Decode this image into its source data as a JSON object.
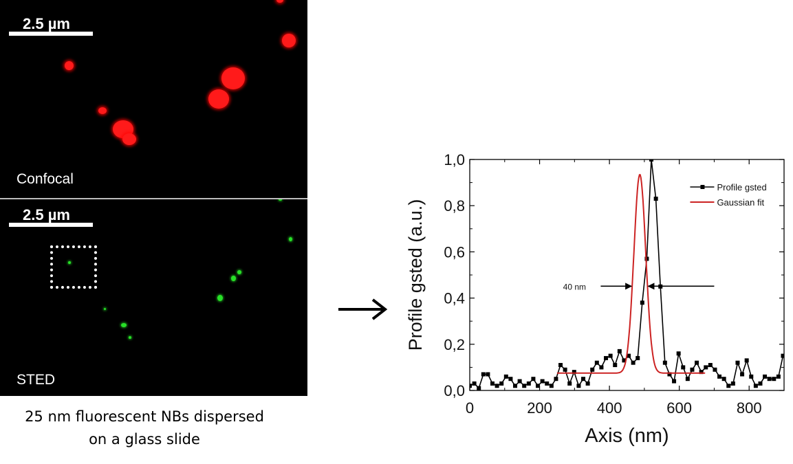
{
  "left_panel": {
    "confocal": {
      "scale_label": "2.5 µm",
      "label": "Confocal",
      "spot_color": "#ff1a1a"
    },
    "sted": {
      "scale_label": "2.5 µm",
      "label": "STED",
      "spot_color": "#27e027"
    },
    "caption_line1": "25 nm fluorescent NBs dispersed",
    "caption_line2": "on a glass slide"
  },
  "chart_data": {
    "type": "line",
    "ylabel": "Profile gsted (a.u.)",
    "xlabel": "Axis (nm)",
    "xlim": [
      0,
      900
    ],
    "ylim": [
      0,
      1.0
    ],
    "xticks": [
      "0",
      "200",
      "400",
      "600",
      "800"
    ],
    "yticks": [
      "0,0",
      "0,2",
      "0,4",
      "0,6",
      "0,8",
      "1,0"
    ],
    "grid": false,
    "legend_position": "top-right",
    "annotation": "40 nm",
    "series": [
      {
        "name": "Profile gsted",
        "color": "#000000",
        "x": [
          0,
          13,
          26,
          39,
          52,
          65,
          78,
          91,
          104,
          117,
          130,
          143,
          156,
          169,
          182,
          195,
          208,
          221,
          234,
          247,
          260,
          273,
          286,
          299,
          312,
          325,
          338,
          351,
          364,
          377,
          390,
          403,
          416,
          429,
          442,
          455,
          468,
          481,
          494,
          507,
          520,
          533,
          546,
          559,
          572,
          585,
          598,
          611,
          624,
          637,
          650,
          663,
          676,
          689,
          702,
          715,
          728,
          741,
          754,
          767,
          780,
          793,
          806,
          819,
          832,
          845,
          858,
          871,
          884,
          897
        ],
        "y": [
          0.02,
          0.03,
          0.01,
          0.07,
          0.07,
          0.03,
          0.02,
          0.03,
          0.06,
          0.05,
          0.02,
          0.04,
          0.02,
          0.03,
          0.05,
          0.02,
          0.04,
          0.03,
          0.02,
          0.05,
          0.11,
          0.09,
          0.03,
          0.08,
          0.02,
          0.05,
          0.03,
          0.09,
          0.12,
          0.1,
          0.14,
          0.15,
          0.11,
          0.17,
          0.13,
          0.15,
          0.12,
          0.14,
          0.38,
          0.57,
          1.0,
          0.83,
          0.45,
          0.12,
          0.07,
          0.04,
          0.16,
          0.1,
          0.05,
          0.09,
          0.12,
          0.08,
          0.1,
          0.11,
          0.09,
          0.06,
          0.05,
          0.02,
          0.03,
          0.12,
          0.07,
          0.13,
          0.06,
          0.02,
          0.03,
          0.06,
          0.05,
          0.05,
          0.06,
          0.15
        ]
      },
      {
        "name": "Gaussian fit",
        "color": "#cc2222",
        "baseline": 0.075,
        "amplitude": 0.86,
        "center": 487,
        "sigma": 17,
        "x_range": [
          250,
          675
        ]
      }
    ]
  }
}
